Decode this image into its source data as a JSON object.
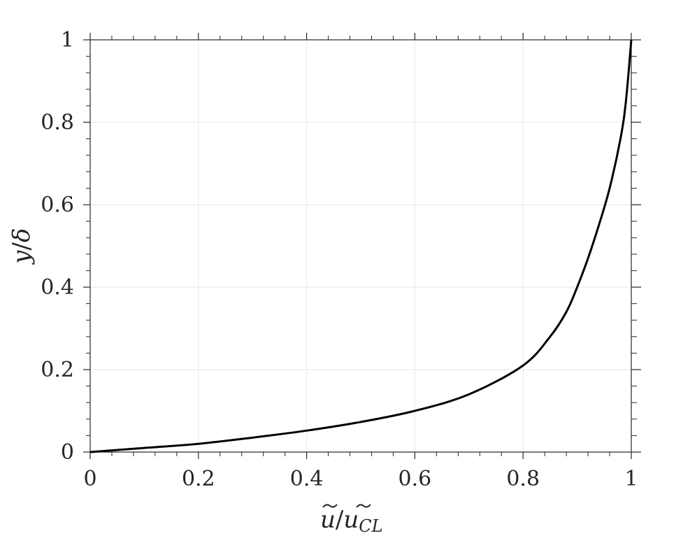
{
  "chart_data": {
    "type": "line",
    "xlabel_main": "u",
    "xlabel_denominator": "u",
    "xlabel_subscript": "CL",
    "ylabel_main": "y",
    "ylabel_denominator": "δ",
    "xlim": [
      0,
      1
    ],
    "ylim": [
      0,
      1
    ],
    "xticks": [
      0,
      0.2,
      0.4,
      0.6,
      0.8,
      1
    ],
    "xtick_labels": [
      "0",
      "0.2",
      "0.4",
      "0.6",
      "0.8",
      "1"
    ],
    "yticks": [
      0,
      0.2,
      0.4,
      0.6,
      0.8,
      1
    ],
    "ytick_labels": [
      "0",
      "0.2",
      "0.4",
      "0.6",
      "0.8",
      "1"
    ],
    "grid": true,
    "series": [
      {
        "color": "#000000",
        "x": [
          0,
          0.1,
          0.2,
          0.3,
          0.4,
          0.5,
          0.6,
          0.7,
          0.8,
          0.85,
          0.88,
          0.9,
          0.92,
          0.94,
          0.96,
          0.98,
          0.99,
          1.0
        ],
        "y": [
          0,
          0.01,
          0.02,
          0.035,
          0.052,
          0.073,
          0.1,
          0.14,
          0.21,
          0.28,
          0.34,
          0.4,
          0.47,
          0.55,
          0.64,
          0.76,
          0.85,
          1.0
        ]
      }
    ]
  }
}
